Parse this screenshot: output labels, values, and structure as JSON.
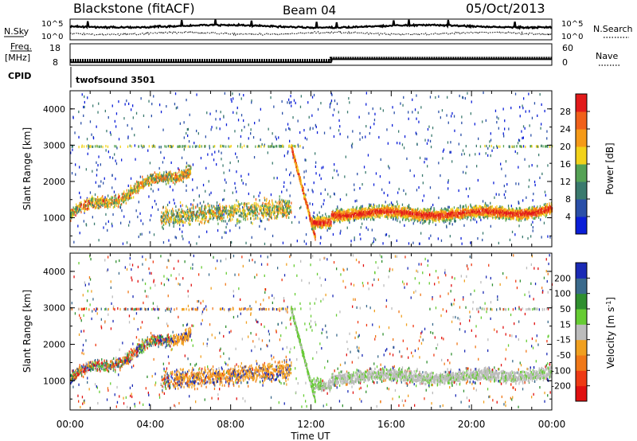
{
  "header": {
    "station": "Blackstone (fitACF)",
    "beam": "Beam 04",
    "date": "05/Oct/2013"
  },
  "chart_data": [
    {
      "type": "line",
      "panel": "noise",
      "labels": {
        "left": "N.Sky",
        "right": "N.Search"
      },
      "left_ticks": [
        "10^5",
        "10^0"
      ],
      "right_ticks": [
        "10^5",
        "10^0"
      ],
      "x_range_hours": [
        0,
        24
      ]
    },
    {
      "type": "line",
      "panel": "frequency",
      "labels": {
        "left_top": "Freq.",
        "left_bottom": "[MHz]",
        "right": "Nave"
      },
      "left_ticks": [
        "18",
        "8"
      ],
      "right_ticks": [
        "60",
        "0"
      ],
      "freq_mhz": {
        "x": [
          0,
          13,
          13,
          24
        ],
        "y": [
          10.0,
          10.0,
          12.0,
          12.0
        ]
      },
      "nave": {
        "x": [
          0,
          13,
          13,
          24
        ],
        "y": [
          20,
          20,
          28,
          28
        ]
      }
    },
    {
      "type": "table",
      "panel": "cpid",
      "label": "CPID",
      "program": "twofsound 3501"
    },
    {
      "type": "heatmap",
      "panel": "power",
      "ylabel": "Slant Range [km]",
      "y_ticks": [
        "1000",
        "2000",
        "3000",
        "4000"
      ],
      "ylim": [
        200,
        4500
      ],
      "colorbar": {
        "label": "Power [dB]",
        "ticks": [
          "4",
          "8",
          "12",
          "16",
          "20",
          "24",
          "28"
        ],
        "colors": [
          "#0a1ed8",
          "#2a4fa8",
          "#3a7a6e",
          "#55a255",
          "#f2d21a",
          "#f59a18",
          "#f0601a",
          "#e21a1a"
        ]
      }
    },
    {
      "type": "heatmap",
      "panel": "velocity",
      "ylabel": "Slant Range [km]",
      "y_ticks": [
        "1000",
        "2000",
        "3000",
        "4000"
      ],
      "ylim": [
        200,
        4500
      ],
      "xlabel": "Time UT",
      "x_ticks": [
        "00:00",
        "04:00",
        "08:00",
        "12:00",
        "16:00",
        "20:00",
        "00:00"
      ],
      "colorbar": {
        "label_main": "Velocity [m s",
        "label_exp": "-1",
        "label_close": "]",
        "ticks": [
          "200",
          "100",
          "50",
          "15",
          "-15",
          "-50",
          "-100",
          "-200"
        ],
        "colors": [
          "#1a2ab5",
          "#3a6a8c",
          "#2f8f2f",
          "#66cc33",
          "#bcbcbc",
          "#f0a020",
          "#f07818",
          "#ee3a14",
          "#e01010"
        ]
      }
    }
  ]
}
